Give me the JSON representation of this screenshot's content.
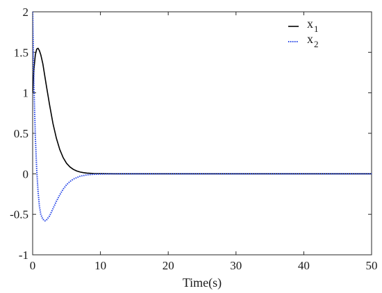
{
  "chart_data": {
    "type": "line",
    "title": "",
    "xlabel": "Time(s)",
    "ylabel": "",
    "xlim": [
      0,
      50
    ],
    "ylim": [
      -1,
      2
    ],
    "xticks": [
      0,
      10,
      20,
      30,
      40,
      50
    ],
    "xtick_labels": [
      "0",
      "10",
      "20",
      "30",
      "40",
      "50"
    ],
    "yticks": [
      -1,
      -0.5,
      0,
      0.5,
      1,
      1.5,
      2
    ],
    "ytick_labels": [
      "-1",
      "-0.5",
      "0",
      "0.5",
      "1",
      "1.5",
      "2"
    ],
    "grid": false,
    "legend_position": "top-right",
    "series": [
      {
        "name": "x",
        "subscript": "1",
        "color": "#000000",
        "style": "solid",
        "x": [
          0,
          0.2,
          0.4,
          0.6,
          0.8,
          1.0,
          1.2,
          1.5,
          2.0,
          2.5,
          3.0,
          3.5,
          4.0,
          4.5,
          5.0,
          5.5,
          6.0,
          6.5,
          7.0,
          7.5,
          8.0,
          9.0,
          10,
          12,
          15,
          20,
          30,
          40,
          50
        ],
        "values": [
          1.0,
          1.3,
          1.47,
          1.54,
          1.55,
          1.52,
          1.47,
          1.36,
          1.1,
          0.85,
          0.62,
          0.44,
          0.3,
          0.2,
          0.13,
          0.085,
          0.055,
          0.035,
          0.022,
          0.014,
          0.009,
          0.004,
          0.002,
          0.0,
          0.0,
          0.0,
          0.0,
          0.0,
          0.0
        ]
      },
      {
        "name": "x",
        "subscript": "2",
        "color": "#1f3fe6",
        "style": "dotted",
        "x": [
          0,
          0.1,
          0.2,
          0.4,
          0.6,
          0.8,
          1.0,
          1.2,
          1.5,
          1.8,
          2.0,
          2.5,
          3.0,
          3.5,
          4.0,
          4.5,
          5.0,
          5.5,
          6.0,
          7.0,
          8.0,
          9.0,
          10,
          12,
          15,
          20,
          30,
          40,
          50
        ],
        "values": [
          2.0,
          1.5,
          1.05,
          0.45,
          0.05,
          -0.22,
          -0.4,
          -0.5,
          -0.56,
          -0.58,
          -0.575,
          -0.52,
          -0.43,
          -0.34,
          -0.26,
          -0.19,
          -0.135,
          -0.095,
          -0.065,
          -0.03,
          -0.013,
          -0.006,
          -0.003,
          0.0,
          0.0,
          0.0,
          0.0,
          0.0,
          0.0
        ]
      }
    ]
  }
}
